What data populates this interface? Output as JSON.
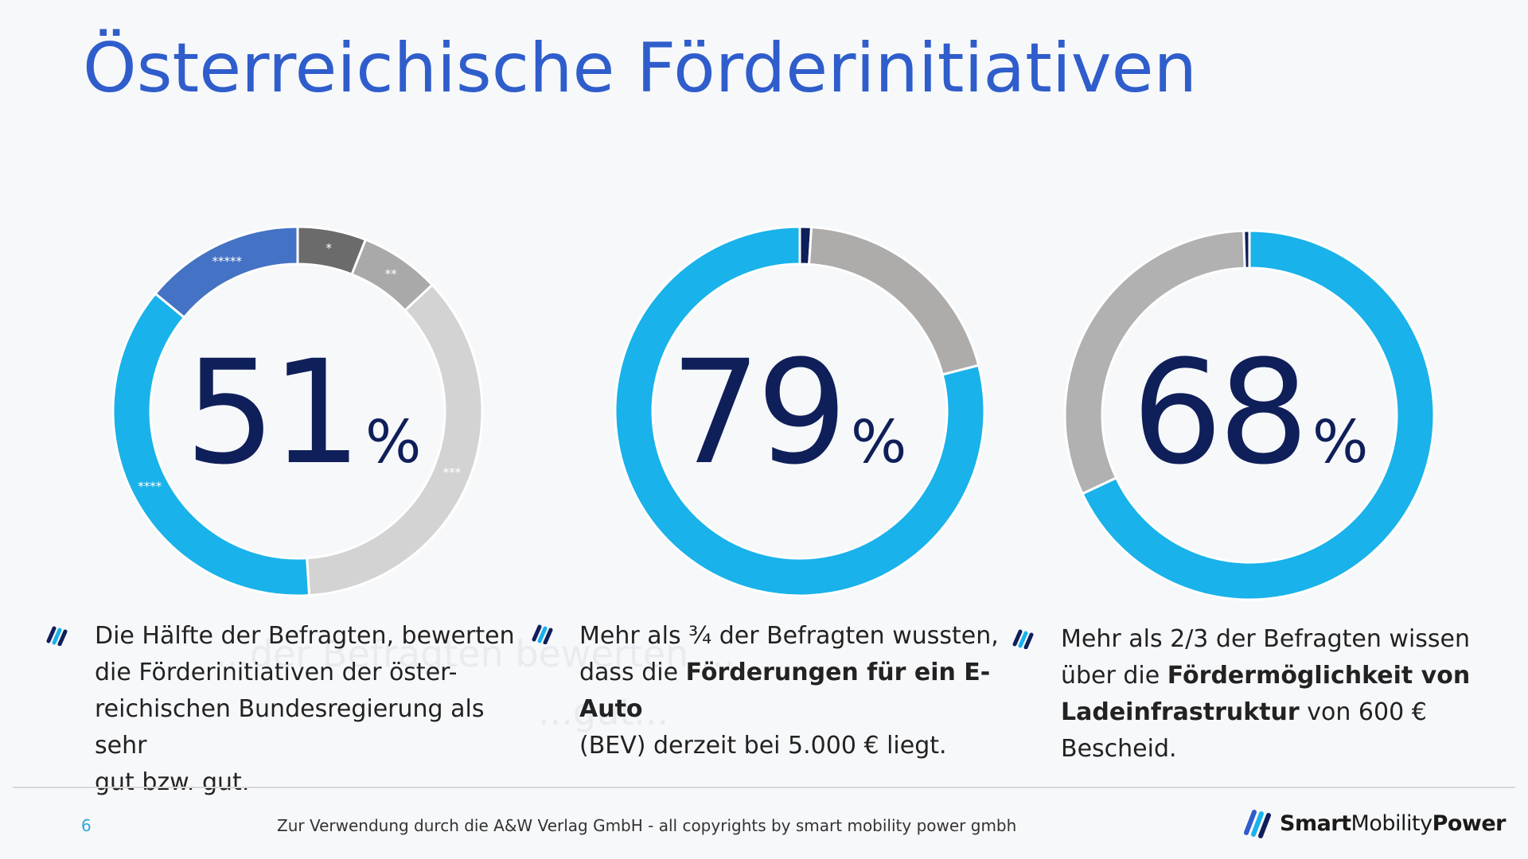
{
  "title": "Österreichische Förderinitiativen",
  "chart_data": [
    {
      "type": "donut",
      "center_value": "51",
      "center_unit": "%",
      "slices": [
        {
          "label": "*",
          "value": 6,
          "color": "#6b6b6b"
        },
        {
          "label": "**",
          "value": 7,
          "color": "#a9a9a9"
        },
        {
          "label": "***",
          "value": 36,
          "color": "#d3d3d3"
        },
        {
          "label": "****",
          "value": 37,
          "color": "#19b2ea"
        },
        {
          "label": "*****",
          "value": 14,
          "color": "#4472c4"
        }
      ]
    },
    {
      "type": "donut",
      "center_value": "79",
      "center_unit": "%",
      "slices": [
        {
          "label": "",
          "value": 1,
          "color": "#0f1f5a"
        },
        {
          "label": "",
          "value": 20,
          "color": "#aeabab"
        },
        {
          "label": "",
          "value": 79,
          "color": "#19b2ea"
        }
      ]
    },
    {
      "type": "donut",
      "center_value": "68",
      "center_unit": "%",
      "slices": [
        {
          "label": "",
          "value": 68,
          "color": "#19b2ea"
        },
        {
          "label": "",
          "value": 31.5,
          "color": "#b1b1b1"
        },
        {
          "label": "",
          "value": 0.5,
          "color": "#0f1f5a"
        }
      ]
    }
  ],
  "notes": [
    {
      "line1": "Die Hälfte der Befragten, bewerten",
      "line2": "die Förderinitiativen der öster-",
      "line3": "reichischen Bundesregierung als sehr",
      "line4": "gut bzw. gut."
    },
    {
      "line1": "Mehr als ¾ der Befragten wussten,",
      "line2_pre": "dass die ",
      "line2_bold": "Förderungen für ein E-Auto",
      "line3": "(BEV) derzeit bei 5.000 € liegt."
    },
    {
      "line1": "Mehr als 2/3 der Befragten wissen",
      "line2_pre": "über die ",
      "line2_bold": "Fördermöglichkeit von",
      "line3_bold": "Ladeinfrastruktur",
      "line3_post": " von 600 € Bescheid."
    }
  ],
  "ghost_text": {
    "line1": "...der Befragten bewerten ...",
    "line2": "...gut..."
  },
  "footer": {
    "page_number": "6",
    "note": "Zur Verwendung durch die A&W Verlag GmbH  - all copyrights by smart mobility power gmbh",
    "brand_part1": "Smart",
    "brand_part2": "Mobility",
    "brand_part3": "Power"
  },
  "colors": {
    "title": "#2f5dcb",
    "accent_cyan": "#19b2ea",
    "navy": "#0f1f5a",
    "page_number": "#2aa8d8"
  }
}
